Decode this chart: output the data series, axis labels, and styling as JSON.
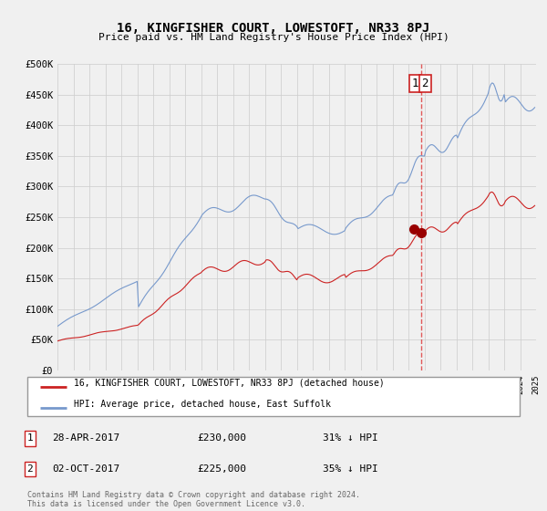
{
  "title": "16, KINGFISHER COURT, LOWESTOFT, NR33 8PJ",
  "subtitle": "Price paid vs. HM Land Registry's House Price Index (HPI)",
  "legend_line1": "16, KINGFISHER COURT, LOWESTOFT, NR33 8PJ (detached house)",
  "legend_line2": "HPI: Average price, detached house, East Suffolk",
  "footnote": "Contains HM Land Registry data © Crown copyright and database right 2024.\nThis data is licensed under the Open Government Licence v3.0.",
  "transaction1_date": "28-APR-2017",
  "transaction1_price": "£230,000",
  "transaction1_hpi": "31% ↓ HPI",
  "transaction2_date": "02-OCT-2017",
  "transaction2_price": "£225,000",
  "transaction2_hpi": "35% ↓ HPI",
  "vline_x": 2017.79,
  "vline_color": "#dd3333",
  "marker1_x": 2017.33,
  "marker1_y": 230000,
  "marker2_x": 2017.79,
  "marker2_y": 225000,
  "marker_color": "#990000",
  "hpi_color": "#7799cc",
  "price_color": "#cc2222",
  "background_color": "#f0f0f0",
  "grid_color": "#cccccc",
  "ylim_min": 0,
  "ylim_max": 500000,
  "yticks": [
    0,
    50000,
    100000,
    150000,
    200000,
    250000,
    300000,
    350000,
    400000,
    450000,
    500000
  ],
  "xlim_min": 1995.0,
  "xlim_max": 2025.0
}
